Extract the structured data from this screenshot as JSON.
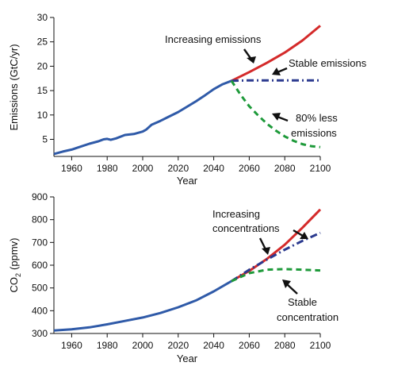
{
  "chart_data": [
    {
      "type": "line",
      "xlabel": "Year",
      "ylabel": "Emissions (GtC/yr)",
      "xlim": [
        1950,
        2100
      ],
      "ylim": [
        1.5,
        30
      ],
      "x_ticks": [
        1960,
        1980,
        2000,
        2020,
        2040,
        2060,
        2080,
        2100
      ],
      "y_ticks": [
        5,
        10,
        15,
        20,
        25,
        30
      ],
      "grid": false,
      "series": [
        {
          "style": "solid",
          "color": "#2f5aa8",
          "x": [
            1950,
            1955,
            1960,
            1965,
            1970,
            1975,
            1978,
            1980,
            1982,
            1985,
            1990,
            1995,
            2000,
            2002,
            2005,
            2010,
            2015,
            2020,
            2025,
            2030,
            2035,
            2040,
            2045,
            2050
          ],
          "y": [
            2.0,
            2.5,
            2.9,
            3.5,
            4.1,
            4.6,
            5.0,
            5.1,
            4.9,
            5.2,
            5.9,
            6.1,
            6.6,
            7.0,
            8.0,
            8.8,
            9.7,
            10.6,
            11.7,
            12.8,
            14.0,
            15.3,
            16.3,
            17.0
          ]
        },
        {
          "style": "solid",
          "color": "#d42a2a",
          "x": [
            2050,
            2060,
            2070,
            2080,
            2090,
            2100
          ],
          "y": [
            17.0,
            18.8,
            20.7,
            22.8,
            25.3,
            28.3
          ]
        },
        {
          "style": "dash-dot",
          "color": "#2b3a8f",
          "x": [
            2050,
            2060,
            2070,
            2080,
            2090,
            2100
          ],
          "y": [
            17.0,
            17.1,
            17.1,
            17.1,
            17.1,
            17.1
          ]
        },
        {
          "style": "dashed",
          "color": "#1e9a3a",
          "x": [
            2050,
            2055,
            2060,
            2065,
            2070,
            2075,
            2080,
            2085,
            2090,
            2095,
            2100
          ],
          "y": [
            17.0,
            14.2,
            11.8,
            9.9,
            8.2,
            6.8,
            5.6,
            4.7,
            4.0,
            3.6,
            3.4
          ]
        }
      ],
      "annotations": [
        "Increasing emissions",
        "Stable emissions",
        "80% less",
        "emissions"
      ]
    },
    {
      "type": "line",
      "xlabel": "Year",
      "ylabel_main": "CO",
      "ylabel_sub": "2",
      "ylabel_unit": "(ppmv)",
      "xlim": [
        1950,
        2100
      ],
      "ylim": [
        300,
        900
      ],
      "x_ticks": [
        1960,
        1980,
        2000,
        2020,
        2040,
        2060,
        2080,
        2100
      ],
      "y_ticks": [
        300,
        400,
        500,
        600,
        700,
        800,
        900
      ],
      "grid": false,
      "series": [
        {
          "style": "solid",
          "color": "#2f5aa8",
          "x": [
            1950,
            1960,
            1970,
            1980,
            1990,
            2000,
            2010,
            2020,
            2030,
            2040,
            2050
          ],
          "y": [
            313,
            318,
            327,
            340,
            355,
            370,
            390,
            415,
            445,
            485,
            530
          ]
        },
        {
          "style": "solid",
          "color": "#d42a2a",
          "x": [
            2050,
            2060,
            2070,
            2080,
            2090,
            2100
          ],
          "y": [
            530,
            575,
            628,
            690,
            765,
            845
          ]
        },
        {
          "style": "dash-dot",
          "color": "#2b3a8f",
          "x": [
            2050,
            2060,
            2070,
            2080,
            2090,
            2100
          ],
          "y": [
            530,
            580,
            625,
            668,
            707,
            742
          ]
        },
        {
          "style": "dashed",
          "color": "#1e9a3a",
          "x": [
            2050,
            2060,
            2070,
            2080,
            2090,
            2100
          ],
          "y": [
            530,
            565,
            580,
            583,
            580,
            577
          ]
        }
      ],
      "annotations": [
        "Increasing",
        "concentrations",
        "Stable",
        "concentration"
      ]
    }
  ]
}
